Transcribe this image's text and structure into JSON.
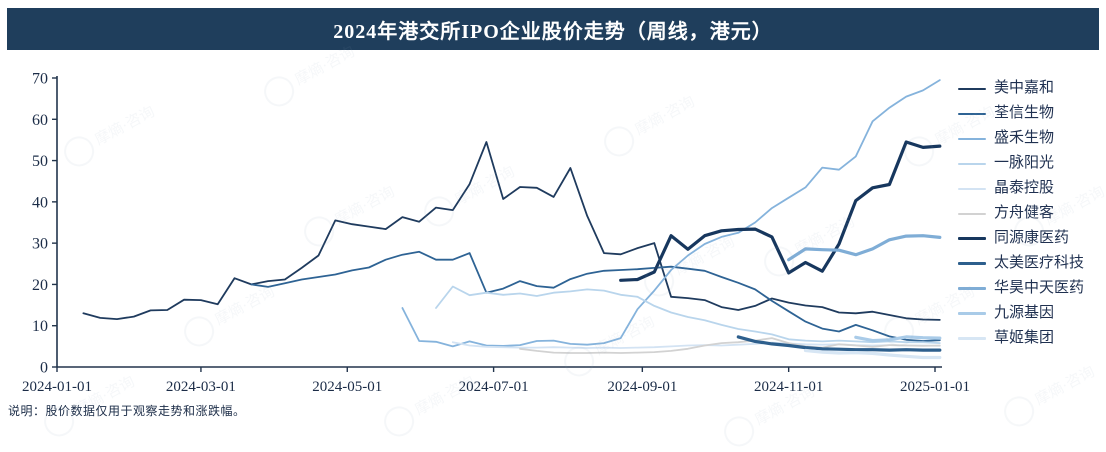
{
  "banner": {
    "title": "2024年港交所IPO企业股价走势（周线，港元）",
    "bg_color": "#1f3e5c",
    "text_color": "#ffffff"
  },
  "footnote": "说明：股价数据仅用于观察走势和涨跌幅。",
  "watermark_text": "摩熵·咨询",
  "colors": {
    "axis": "#22344c",
    "tick_label": "#1b2c47",
    "legend_text": "#1f3050"
  },
  "chart_data": {
    "type": "line",
    "title": "2024年港交所IPO企业股价走势（周线，港元）",
    "unit": "港元 (HKD)",
    "frequency": "weekly",
    "grid": false,
    "legend_position": "right",
    "x_axis": {
      "range": [
        "2024-01-01",
        "2025-01-06"
      ],
      "tick_labels": [
        "2024-01-01",
        "2024-03-01",
        "2024-05-01",
        "2024-07-01",
        "2024-09-01",
        "2024-11-01",
        "2025-01-01"
      ]
    },
    "y_axis": {
      "min": 0,
      "max": 70,
      "step": 10,
      "ticks": [
        0,
        10,
        20,
        30,
        40,
        50,
        60,
        70
      ]
    },
    "series": [
      {
        "name": "美中嘉和",
        "color": "#1f3b5e",
        "width": 1.8,
        "start": "2024-01-12",
        "values": [
          13.0,
          11.9,
          11.6,
          12.2,
          13.7,
          13.8,
          16.3,
          16.2,
          15.2,
          21.5,
          20.0,
          20.8,
          21.2,
          24.0,
          27.0,
          35.5,
          34.6,
          34.0,
          33.4,
          36.3,
          35.2,
          38.6,
          38.0,
          44.3,
          54.5,
          40.7,
          43.6,
          43.4,
          41.2,
          48.2,
          36.6,
          27.6,
          27.3,
          28.8,
          30.0,
          17.0,
          16.7,
          16.2,
          14.5,
          13.8,
          14.8,
          16.6,
          15.6,
          14.9,
          14.5,
          13.2,
          13.0,
          13.4,
          12.6,
          11.8,
          11.5,
          11.4
        ]
      },
      {
        "name": "荃信生物",
        "color": "#2e6394",
        "width": 1.8,
        "start": "2024-03-22",
        "values": [
          20.0,
          19.4,
          20.3,
          21.2,
          21.8,
          22.4,
          23.4,
          24.1,
          26.0,
          27.2,
          27.9,
          26.0,
          26.0,
          27.6,
          18.0,
          19.0,
          20.8,
          19.6,
          19.2,
          21.3,
          22.6,
          23.3,
          23.5,
          23.7,
          24.0,
          24.3,
          23.8,
          23.3,
          21.8,
          20.4,
          18.8,
          16.0,
          13.5,
          11.0,
          9.3,
          8.6,
          10.2,
          8.9,
          7.4,
          6.6,
          6.3,
          6.5
        ]
      },
      {
        "name": "盛禾生物",
        "color": "#85b3dc",
        "width": 1.8,
        "start": "2024-05-24",
        "values": [
          14.3,
          6.3,
          6.1,
          5.0,
          6.2,
          5.2,
          5.1,
          5.3,
          6.3,
          6.4,
          5.6,
          5.4,
          5.8,
          7.0,
          14.0,
          18.5,
          23.5,
          27.0,
          29.8,
          31.5,
          32.5,
          35.0,
          38.5,
          41.0,
          43.5,
          48.3,
          47.8,
          51.0,
          59.5,
          62.8,
          65.5,
          67.0,
          69.5
        ]
      },
      {
        "name": "一脉阳光",
        "color": "#b9d5ec",
        "width": 1.8,
        "start": "2024-06-07",
        "values": [
          14.3,
          19.5,
          17.4,
          18.0,
          17.5,
          17.8,
          17.2,
          18.0,
          18.3,
          18.8,
          18.5,
          17.5,
          17.0,
          14.8,
          13.2,
          12.1,
          11.3,
          10.2,
          9.2,
          8.6,
          7.9,
          6.7,
          6.4,
          6.2,
          6.4,
          6.2,
          6.0,
          6.2,
          6.0,
          6.0,
          5.8
        ]
      },
      {
        "name": "晶泰控股",
        "color": "#d3e3f3",
        "width": 1.8,
        "start": "2024-06-14",
        "values": [
          6.0,
          5.2,
          4.9,
          4.8,
          4.7,
          4.7,
          4.8,
          4.7,
          4.6,
          4.7,
          4.6,
          4.7,
          4.8,
          5.0,
          5.2,
          5.3,
          5.2,
          5.4,
          5.6,
          5.9,
          5.7,
          5.5,
          5.4,
          5.5,
          5.3,
          5.2,
          5.3,
          5.2,
          5.2,
          5.1
        ]
      },
      {
        "name": "方舟健客",
        "color": "#d2d2d2",
        "width": 1.8,
        "start": "2024-07-12",
        "values": [
          4.4,
          3.9,
          3.5,
          3.4,
          3.4,
          3.5,
          3.4,
          3.5,
          3.6,
          3.9,
          4.4,
          5.2,
          5.8,
          6.0,
          6.4,
          7.0,
          5.8,
          5.0,
          4.7,
          5.5,
          5.2,
          4.9,
          5.3,
          5.2,
          5.1,
          5.2
        ]
      },
      {
        "name": "同源康医药",
        "color": "#17375e",
        "width": 3.2,
        "start": "2024-08-23",
        "values": [
          21.0,
          21.2,
          23.0,
          31.8,
          28.5,
          31.8,
          33.0,
          33.3,
          33.4,
          31.5,
          22.8,
          25.3,
          23.2,
          29.8,
          40.3,
          43.4,
          44.2,
          54.5,
          53.2,
          53.5
        ]
      },
      {
        "name": "太美医疗科技",
        "color": "#2d5f8d",
        "width": 3.2,
        "start": "2024-10-11",
        "values": [
          7.3,
          6.2,
          5.6,
          5.2,
          4.7,
          4.4,
          4.3,
          4.2,
          4.2,
          4.1,
          4.2,
          4.1,
          4.1
        ]
      },
      {
        "name": "华昊中天医药",
        "color": "#7fadd6",
        "width": 3.2,
        "start": "2024-11-01",
        "values": [
          26.0,
          28.6,
          28.4,
          28.3,
          27.2,
          28.6,
          30.8,
          31.7,
          31.8,
          31.4
        ]
      },
      {
        "name": "九源基因",
        "color": "#a9cbe8",
        "width": 3.2,
        "start": "2024-11-29",
        "values": [
          7.2,
          6.4,
          6.6,
          7.3,
          7.1,
          7.0
        ]
      },
      {
        "name": "草姬集团",
        "color": "#d7e6f4",
        "width": 3.2,
        "start": "2024-11-08",
        "values": [
          4.0,
          3.6,
          3.4,
          3.5,
          3.3,
          2.9,
          2.6,
          2.3,
          2.3
        ]
      }
    ]
  }
}
